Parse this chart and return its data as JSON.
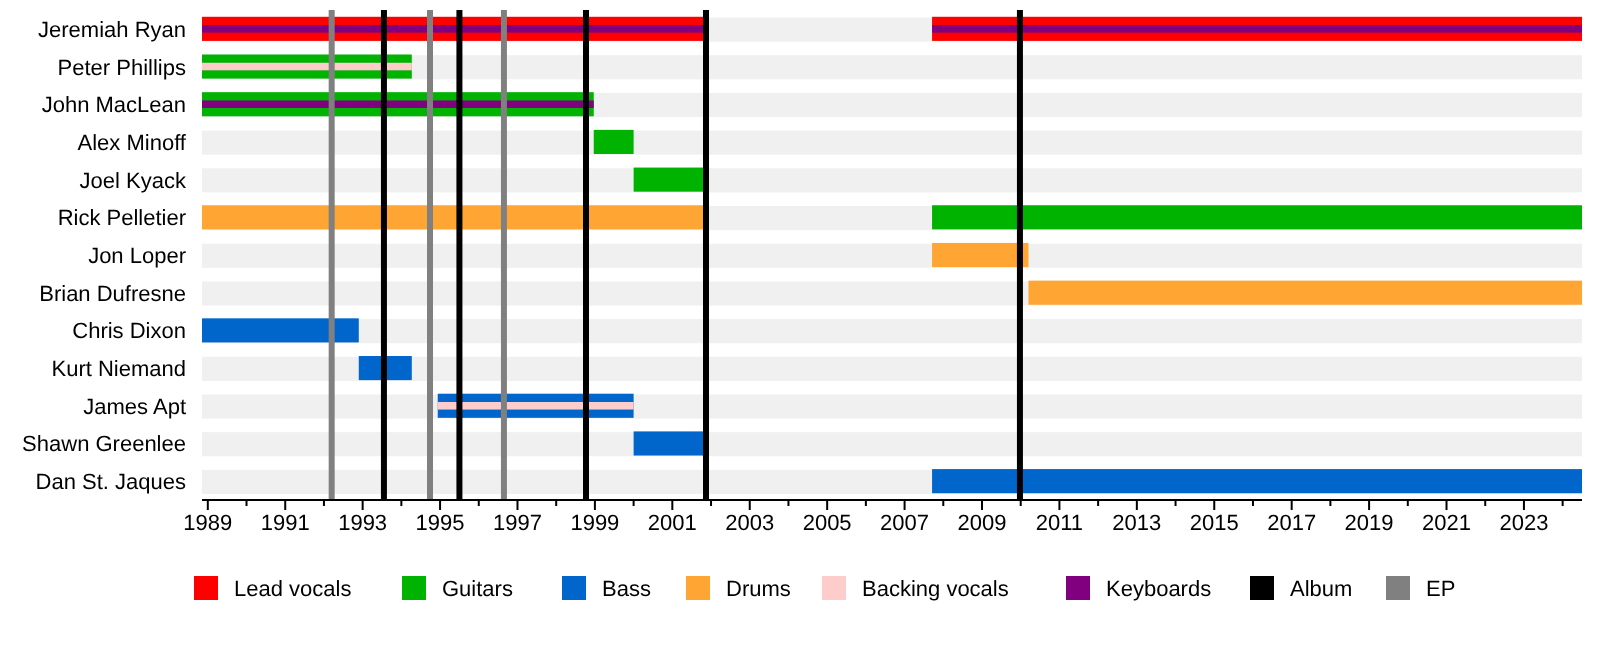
{
  "chart_data": {
    "type": "bar",
    "orientation": "horizontal",
    "categories": [
      "Jeremiah Ryan",
      "Peter Phillips",
      "John MacLean",
      "Alex Minoff",
      "Joel Kyack",
      "Rick Pelletier",
      "Jon Loper",
      "Brian Dufresne",
      "Chris Dixon",
      "Kurt Niemand",
      "James Apt",
      "Shawn Greenlee",
      "Dan St. Jaques"
    ],
    "series": [
      {
        "name": "Lead vocals",
        "color": "#ff0000",
        "values": [
          13.02,
          null,
          null,
          null,
          null,
          null,
          null,
          null,
          null,
          null,
          null,
          null,
          null
        ],
        "base": [
          1988.85,
          null,
          null,
          null,
          null,
          null,
          null,
          null,
          null,
          null,
          null,
          null,
          null
        ]
      },
      {
        "color": "#ff0000",
        "values": [
          16.79,
          null,
          null,
          null,
          null,
          null,
          null,
          null,
          null,
          null,
          null,
          null,
          null
        ],
        "base": [
          2007.71,
          null,
          null,
          null,
          null,
          null,
          null,
          null,
          null,
          null,
          null,
          null,
          null
        ]
      },
      {
        "name": "Guitars",
        "color": "#00b300",
        "values": [
          null,
          5.42,
          10.12,
          1.03,
          1.87,
          16.79,
          null,
          null,
          null,
          null,
          null,
          null,
          null
        ],
        "base": [
          null,
          1988.85,
          1988.85,
          1998.97,
          2000.0,
          2007.71,
          null,
          null,
          null,
          null,
          null,
          null,
          null
        ]
      },
      {
        "name": "Bass",
        "color": "#0066cc",
        "values": [
          null,
          null,
          null,
          null,
          null,
          null,
          null,
          null,
          4.05,
          1.37,
          5.06,
          1.87,
          16.79
        ],
        "base": [
          null,
          null,
          null,
          null,
          null,
          null,
          null,
          null,
          1988.85,
          1992.9,
          1994.94,
          2000.0,
          2007.71
        ]
      },
      {
        "name": "Drums",
        "color": "#ffa533",
        "values": [
          null,
          null,
          null,
          null,
          null,
          13.02,
          2.49,
          14.3,
          null,
          null,
          null,
          null,
          null
        ],
        "base": [
          null,
          null,
          null,
          null,
          null,
          1988.85,
          2007.71,
          2010.2,
          null,
          null,
          null,
          null,
          null
        ]
      },
      {
        "name": "Backing vocals",
        "color": "#ffcccc",
        "values": [
          null,
          5.42,
          null,
          null,
          null,
          null,
          null,
          null,
          null,
          null,
          5.06,
          null,
          null
        ],
        "base": [
          null,
          1988.85,
          null,
          null,
          null,
          null,
          null,
          null,
          null,
          null,
          1994.94,
          null,
          null
        ]
      },
      {
        "name": "Keyboards",
        "color": "#800080",
        "values": [
          13.02,
          null,
          10.12,
          null,
          null,
          null,
          null,
          null,
          null,
          null,
          null,
          null,
          null
        ],
        "base": [
          1988.85,
          null,
          1988.85,
          null,
          null,
          null,
          null,
          null,
          null,
          null,
          null,
          null,
          null
        ]
      },
      {
        "color": "#800080",
        "values": [
          16.79,
          null,
          null,
          null,
          null,
          null,
          null,
          null,
          null,
          null,
          null,
          null,
          null
        ],
        "base": [
          2007.71,
          null,
          null,
          null,
          null,
          null,
          null,
          null,
          null,
          null,
          null,
          null,
          null
        ]
      }
    ],
    "ref_lines": [
      {
        "axis": "x",
        "value": 1993.55,
        "label": "Album",
        "color": "#000000"
      },
      {
        "axis": "x",
        "value": 1995.5,
        "color": "#000000"
      },
      {
        "axis": "x",
        "value": 1998.77,
        "color": "#000000"
      },
      {
        "axis": "x",
        "value": 2001.87,
        "color": "#000000"
      },
      {
        "axis": "x",
        "value": 2009.98,
        "color": "#000000"
      },
      {
        "axis": "x",
        "value": 1992.2,
        "label": "EP",
        "color": "#808080"
      },
      {
        "axis": "x",
        "value": 1994.74,
        "color": "#808080"
      },
      {
        "axis": "x",
        "value": 1996.65,
        "color": "#808080"
      }
    ],
    "xlim": [
      1988.85,
      2024.5
    ],
    "xticks": [
      1989,
      {
        "value": 1990,
        "label": null
      },
      1991,
      {
        "value": 1992,
        "label": null
      },
      1993,
      {
        "value": 1994,
        "label": null
      },
      1995,
      {
        "value": 1996,
        "label": null
      },
      1997,
      {
        "value": 1998,
        "label": null
      },
      1999,
      {
        "value": 2000,
        "label": null
      },
      2001,
      {
        "value": 2002,
        "label": null
      },
      2003,
      {
        "value": 2004,
        "label": null
      },
      2005,
      {
        "value": 2006,
        "label": null
      },
      2007,
      {
        "value": 2008,
        "label": null
      },
      2009,
      {
        "value": 2010,
        "label": null
      },
      2011,
      {
        "value": 2012,
        "label": null
      },
      2013,
      {
        "value": 2014,
        "label": null
      },
      2015,
      {
        "value": 2016,
        "label": null
      },
      2017,
      {
        "value": 2018,
        "label": null
      },
      2019,
      {
        "value": 2020,
        "label": null
      },
      2021,
      {
        "value": 2022,
        "label": null
      },
      2023,
      {
        "value": 2024,
        "label": null
      }
    ],
    "legend": "bottom",
    "grid": false
  }
}
